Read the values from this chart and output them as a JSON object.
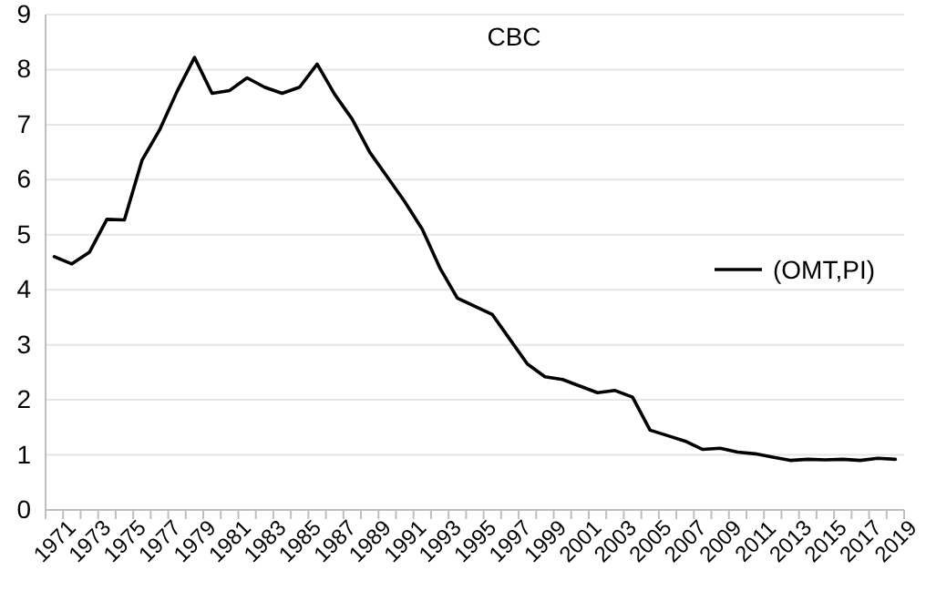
{
  "chart_data": {
    "type": "line",
    "title": "CBC",
    "categories": [
      "1971",
      null,
      "1973",
      null,
      "1975",
      null,
      "1977",
      null,
      "1979",
      null,
      "1981",
      null,
      "1983",
      null,
      "1985",
      null,
      "1987",
      null,
      "1989",
      null,
      "1991",
      null,
      "1993",
      null,
      "1995",
      null,
      "1997",
      null,
      "1999",
      null,
      "2001",
      null,
      "2003",
      null,
      "2005",
      null,
      "2007",
      null,
      "2009",
      null,
      "2011",
      null,
      "2013",
      null,
      "2015",
      null,
      "2017",
      null,
      "2019"
    ],
    "series": [
      {
        "name": "(OMT,PI)",
        "color": "#000000",
        "values": [
          4.6,
          4.47,
          4.68,
          5.28,
          5.27,
          6.35,
          6.9,
          7.6,
          8.22,
          7.57,
          7.62,
          7.85,
          7.68,
          7.57,
          7.68,
          8.1,
          7.55,
          7.1,
          6.5,
          6.05,
          5.6,
          5.1,
          4.4,
          3.85,
          3.7,
          3.55,
          3.1,
          2.65,
          2.42,
          2.37,
          2.25,
          2.13,
          2.17,
          2.05,
          1.45,
          1.35,
          1.25,
          1.1,
          1.12,
          1.05,
          1.02,
          0.96,
          0.9,
          0.92,
          0.91,
          0.92,
          0.9,
          0.94,
          0.92
        ]
      }
    ],
    "ylim": [
      0,
      9
    ],
    "yticks": [
      0,
      1,
      2,
      3,
      4,
      5,
      6,
      7,
      8,
      9
    ],
    "grid": "y",
    "legend": "right",
    "marker": "none",
    "line_style": "solid"
  }
}
